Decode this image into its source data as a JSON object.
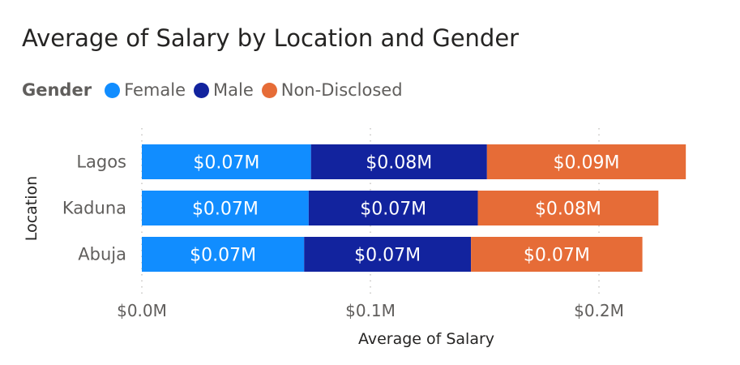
{
  "colors": {
    "female": "#118dff",
    "male": "#12239e",
    "non_disclosed": "#e66c37",
    "grid": "#c8c6c4",
    "text": "#605e5c"
  },
  "chart_data": {
    "type": "bar",
    "orientation": "horizontal",
    "stacked": true,
    "title": "Average of Salary by Location and Gender",
    "xlabel": "Average of Salary",
    "ylabel": "Location",
    "legend_title": "Gender",
    "legend_position": "top-left",
    "grid": true,
    "xlim": [
      0,
      0.25
    ],
    "x_ticks": [
      {
        "value": 0.0,
        "label": "$0.0M"
      },
      {
        "value": 0.1,
        "label": "$0.1M"
      },
      {
        "value": 0.2,
        "label": "$0.2M"
      }
    ],
    "categories": [
      "Lagos",
      "Kaduna",
      "Abuja"
    ],
    "series": [
      {
        "name": "Female",
        "color": "#118dff",
        "values": [
          0.074,
          0.073,
          0.071
        ],
        "labels": [
          "$0.07M",
          "$0.07M",
          "$0.07M"
        ]
      },
      {
        "name": "Male",
        "color": "#12239e",
        "values": [
          0.077,
          0.074,
          0.073
        ],
        "labels": [
          "$0.08M",
          "$0.07M",
          "$0.07M"
        ]
      },
      {
        "name": "Non-Disclosed",
        "color": "#e66c37",
        "values": [
          0.087,
          0.079,
          0.075
        ],
        "labels": [
          "$0.09M",
          "$0.08M",
          "$0.07M"
        ]
      }
    ]
  }
}
